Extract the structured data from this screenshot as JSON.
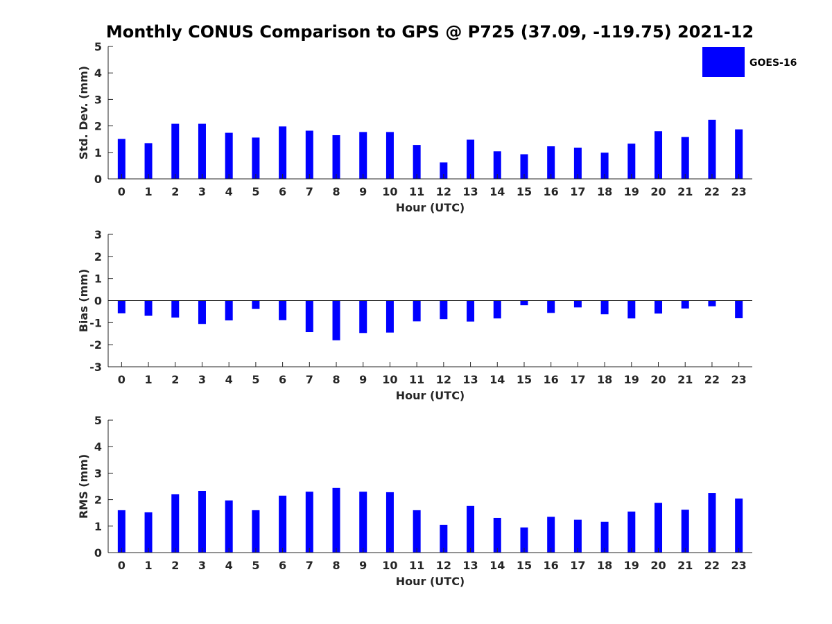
{
  "title": "Monthly CONUS Comparison to GPS @ P725 (37.09, -119.75) 2021-12",
  "legend": {
    "label": "GOES-16",
    "color": "#0000ff"
  },
  "chart_data": [
    {
      "type": "bar",
      "ylabel": "Std. Dev. (mm)",
      "xlabel": "Hour (UTC)",
      "ylim": [
        0,
        5
      ],
      "yticks": [
        0,
        1,
        2,
        3,
        4,
        5
      ],
      "categories": [
        "0",
        "1",
        "2",
        "3",
        "4",
        "5",
        "6",
        "7",
        "8",
        "9",
        "10",
        "11",
        "12",
        "13",
        "14",
        "15",
        "16",
        "17",
        "18",
        "19",
        "20",
        "21",
        "22",
        "23"
      ],
      "series": [
        {
          "name": "GOES-16",
          "values": [
            1.51,
            1.35,
            2.08,
            2.08,
            1.74,
            1.56,
            1.98,
            1.82,
            1.65,
            1.77,
            1.77,
            1.28,
            0.62,
            1.48,
            1.04,
            0.93,
            1.23,
            1.18,
            0.99,
            1.33,
            1.8,
            1.58,
            2.23,
            1.87
          ]
        }
      ],
      "color": "#0000ff"
    },
    {
      "type": "bar",
      "ylabel": "Bias (mm)",
      "xlabel": "Hour (UTC)",
      "ylim": [
        -3,
        3
      ],
      "yticks": [
        -3,
        -2,
        -1,
        0,
        1,
        2,
        3
      ],
      "categories": [
        "0",
        "1",
        "2",
        "3",
        "4",
        "5",
        "6",
        "7",
        "8",
        "9",
        "10",
        "11",
        "12",
        "13",
        "14",
        "15",
        "16",
        "17",
        "18",
        "19",
        "20",
        "21",
        "22",
        "23"
      ],
      "series": [
        {
          "name": "GOES-16",
          "values": [
            -0.58,
            -0.69,
            -0.77,
            -1.06,
            -0.9,
            -0.38,
            -0.89,
            -1.43,
            -1.8,
            -1.47,
            -1.45,
            -0.94,
            -0.84,
            -0.95,
            -0.81,
            -0.21,
            -0.56,
            -0.31,
            -0.62,
            -0.81,
            -0.59,
            -0.36,
            -0.26,
            -0.8
          ]
        }
      ],
      "color": "#0000ff"
    },
    {
      "type": "bar",
      "ylabel": "RMS (mm)",
      "xlabel": "Hour (UTC)",
      "ylim": [
        0,
        5
      ],
      "yticks": [
        0,
        1,
        2,
        3,
        4,
        5
      ],
      "categories": [
        "0",
        "1",
        "2",
        "3",
        "4",
        "5",
        "6",
        "7",
        "8",
        "9",
        "10",
        "11",
        "12",
        "13",
        "14",
        "15",
        "16",
        "17",
        "18",
        "19",
        "20",
        "21",
        "22",
        "23"
      ],
      "series": [
        {
          "name": "GOES-16",
          "values": [
            1.6,
            1.52,
            2.2,
            2.33,
            1.97,
            1.6,
            2.15,
            2.3,
            2.44,
            2.3,
            2.28,
            1.6,
            1.05,
            1.76,
            1.31,
            0.95,
            1.35,
            1.24,
            1.16,
            1.55,
            1.88,
            1.62,
            2.25,
            2.04
          ]
        }
      ],
      "color": "#0000ff"
    }
  ]
}
